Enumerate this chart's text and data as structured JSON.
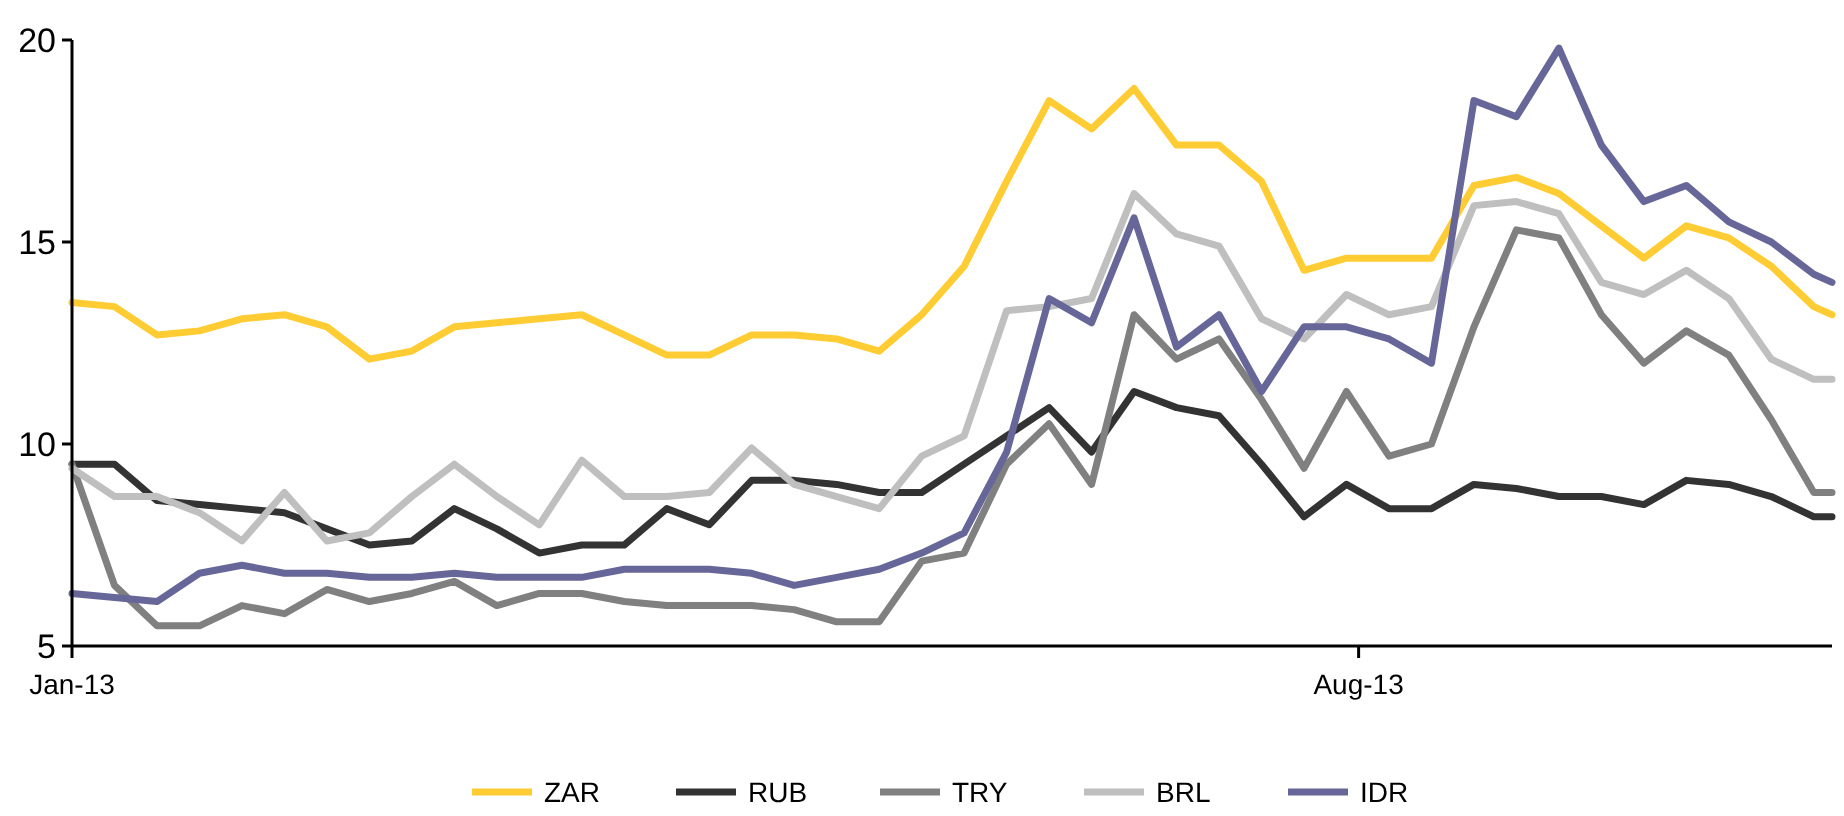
{
  "chart_data": {
    "type": "line",
    "x": [
      "2013-01-01",
      "2013-01-08",
      "2013-01-15",
      "2013-01-22",
      "2013-01-29",
      "2013-02-05",
      "2013-02-12",
      "2013-02-19",
      "2013-02-26",
      "2013-03-05",
      "2013-03-12",
      "2013-03-19",
      "2013-03-26",
      "2013-04-02",
      "2013-04-09",
      "2013-04-16",
      "2013-04-23",
      "2013-04-30",
      "2013-05-07",
      "2013-05-14",
      "2013-05-21",
      "2013-05-28",
      "2013-06-04",
      "2013-06-11",
      "2013-06-18",
      "2013-06-25",
      "2013-07-02",
      "2013-07-09",
      "2013-07-16",
      "2013-07-23",
      "2013-07-30",
      "2013-08-06",
      "2013-08-13",
      "2013-08-20",
      "2013-08-27",
      "2013-09-03",
      "2013-09-10",
      "2013-09-17",
      "2013-09-24",
      "2013-10-01",
      "2013-10-08",
      "2013-10-15",
      "2013-10-18"
    ],
    "series": [
      {
        "name": "ZAR",
        "color": "#ffcc33",
        "values": [
          13.5,
          13.4,
          12.7,
          12.8,
          13.1,
          13.2,
          12.9,
          12.1,
          12.3,
          12.9,
          13.0,
          13.1,
          13.2,
          12.7,
          12.2,
          12.2,
          12.7,
          12.7,
          12.6,
          12.3,
          13.2,
          14.4,
          16.5,
          18.5,
          17.8,
          18.8,
          17.4,
          17.4,
          16.5,
          14.3,
          14.6,
          14.6,
          14.6,
          16.4,
          16.6,
          16.2,
          15.4,
          14.6,
          15.4,
          15.1,
          14.4,
          13.4,
          13.2
        ]
      },
      {
        "name": "RUB",
        "color": "#333333",
        "values": [
          9.5,
          9.5,
          8.6,
          8.5,
          8.4,
          8.3,
          7.9,
          7.5,
          7.6,
          8.4,
          7.9,
          7.3,
          7.5,
          7.5,
          8.4,
          8.0,
          9.1,
          9.1,
          9.0,
          8.8,
          8.8,
          9.5,
          10.2,
          10.9,
          9.8,
          11.3,
          10.9,
          10.7,
          9.5,
          8.2,
          9.0,
          8.4,
          8.4,
          9.0,
          8.9,
          8.7,
          8.7,
          8.5,
          9.1,
          9.0,
          8.7,
          8.2,
          8.2
        ]
      },
      {
        "name": "TRY",
        "color": "#808080",
        "values": [
          9.5,
          6.5,
          5.5,
          5.5,
          6.0,
          5.8,
          6.4,
          6.1,
          6.3,
          6.6,
          6.0,
          6.3,
          6.3,
          6.1,
          6.0,
          6.0,
          6.0,
          5.9,
          5.6,
          5.6,
          7.1,
          7.3,
          9.5,
          10.5,
          9.0,
          13.2,
          12.1,
          12.6,
          11.1,
          9.4,
          11.3,
          9.7,
          10.0,
          12.9,
          15.3,
          15.1,
          13.2,
          12.0,
          12.8,
          12.2,
          10.6,
          8.8,
          8.8
        ]
      },
      {
        "name": "BRL",
        "color": "#bfbfbf",
        "values": [
          9.4,
          8.7,
          8.7,
          8.3,
          7.6,
          8.8,
          7.6,
          7.8,
          8.7,
          9.5,
          8.7,
          8.0,
          9.6,
          8.7,
          8.7,
          8.8,
          9.9,
          9.0,
          8.7,
          8.4,
          9.7,
          10.2,
          13.3,
          13.4,
          13.6,
          16.2,
          15.2,
          14.9,
          13.1,
          12.6,
          13.7,
          13.2,
          13.4,
          15.9,
          16.0,
          15.7,
          14.0,
          13.7,
          14.3,
          13.6,
          12.1,
          11.6,
          11.6
        ]
      },
      {
        "name": "IDR",
        "color": "#666699",
        "values": [
          6.3,
          6.2,
          6.1,
          6.8,
          7.0,
          6.8,
          6.8,
          6.7,
          6.7,
          6.8,
          6.7,
          6.7,
          6.7,
          6.9,
          6.9,
          6.9,
          6.8,
          6.5,
          6.7,
          6.9,
          7.3,
          7.8,
          9.8,
          13.6,
          13.0,
          15.6,
          12.4,
          13.2,
          11.3,
          12.9,
          12.9,
          12.6,
          12.0,
          18.5,
          18.1,
          19.8,
          17.4,
          16.0,
          16.4,
          15.5,
          15.0,
          14.2,
          14.0
        ]
      }
    ],
    "xlim": [
      "2013-01-01",
      "2013-10-18"
    ],
    "xticks": [
      {
        "value": "2013-01-01",
        "label": "Jan-13"
      },
      {
        "value": "2013-08-01",
        "label": "Aug-13"
      }
    ],
    "ylim": [
      5,
      20
    ],
    "yticks": [
      5,
      10,
      15,
      20
    ],
    "grid": false,
    "legend": "bottom",
    "line_style": "solid",
    "marker": "none"
  }
}
